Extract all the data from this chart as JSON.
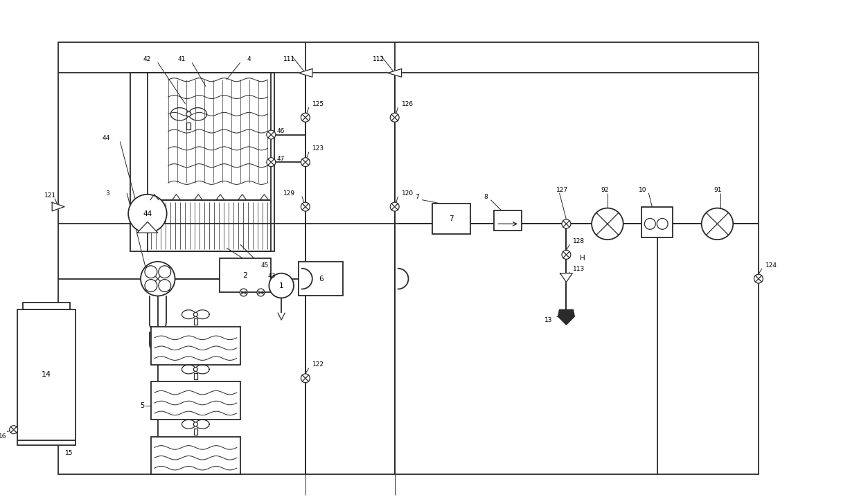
{
  "bg_color": "#ffffff",
  "lc": "#2a2a2a",
  "lw": 1.3,
  "tlw": 0.9,
  "fig_w": 12.4,
  "fig_h": 7.28
}
